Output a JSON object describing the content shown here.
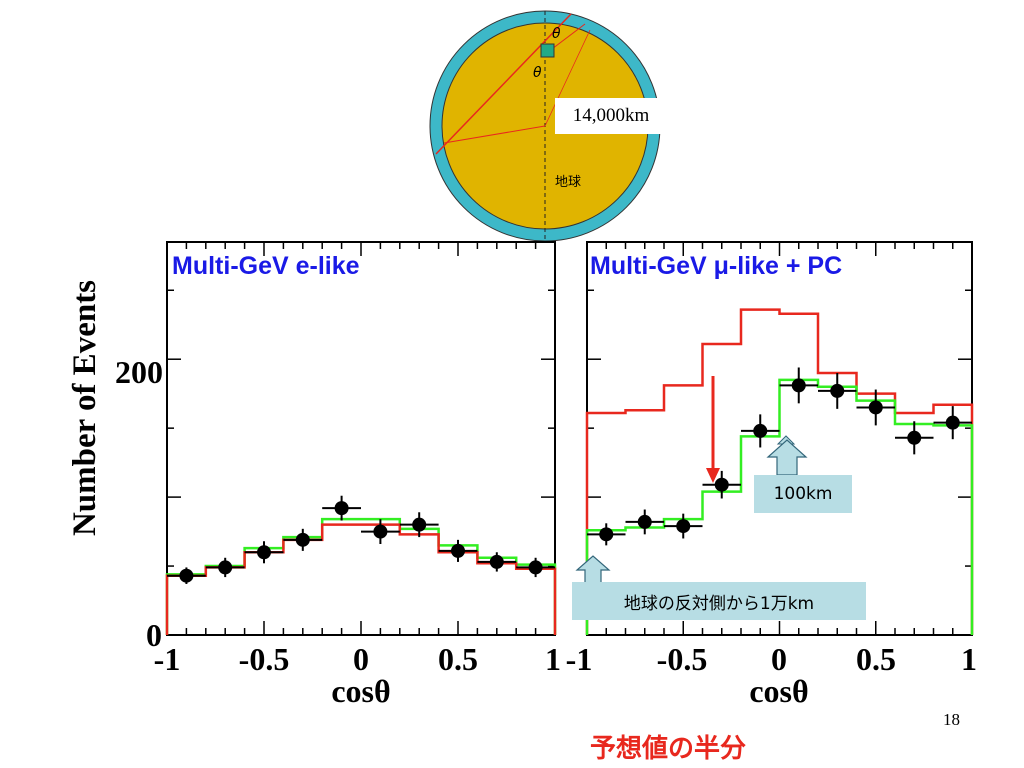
{
  "earth": {
    "theta_top": "θ",
    "theta_inner": "θ",
    "distance_label": "14,000km",
    "earth_label": "地球",
    "colors": {
      "core": "#e0b400",
      "shell": "#3db8c8",
      "line": "#e8281e"
    }
  },
  "chart_data": [
    {
      "type": "histogram",
      "title": "Multi-GeV e-like",
      "xlabel": "cosθ",
      "ylabel": "Number of Events",
      "xlim": [
        -1,
        1
      ],
      "ylim": [
        0,
        285
      ],
      "x_ticks": [
        "-1",
        "-0.5",
        "0",
        "0.5",
        "1"
      ],
      "y_ticks": [
        "0",
        "200"
      ],
      "points": {
        "x": [
          -0.9,
          -0.7,
          -0.5,
          -0.3,
          -0.1,
          0.1,
          0.3,
          0.5,
          0.7,
          0.9
        ],
        "y": [
          43,
          49,
          60,
          69,
          92,
          75,
          80,
          61,
          53,
          49
        ],
        "yerr": [
          6,
          7,
          8,
          8,
          9,
          9,
          9,
          8,
          7,
          7
        ]
      },
      "series": [
        {
          "color": "#33ee22",
          "values": [
            44,
            50,
            63,
            71,
            84,
            84,
            77,
            65,
            56,
            51
          ]
        },
        {
          "color": "#e8281e",
          "values": [
            43,
            49,
            60,
            69,
            80,
            80,
            73,
            60,
            52,
            48
          ]
        }
      ]
    },
    {
      "type": "histogram",
      "title": "Multi-GeV μ-like + PC",
      "xlabel": "cosθ",
      "xlim": [
        -1,
        1
      ],
      "ylim": [
        0,
        285
      ],
      "x_ticks": [
        "-1",
        "-0.5",
        "0",
        "0.5",
        "1"
      ],
      "points": {
        "x": [
          -0.9,
          -0.7,
          -0.5,
          -0.3,
          -0.1,
          0.1,
          0.3,
          0.5,
          0.7,
          0.9
        ],
        "y": [
          73,
          82,
          79,
          109,
          148,
          181,
          177,
          165,
          143,
          154
        ],
        "yerr": [
          8,
          9,
          9,
          10,
          12,
          13,
          13,
          13,
          12,
          12
        ]
      },
      "series": [
        {
          "color": "#e8281e",
          "values": [
            161,
            163,
            181,
            211,
            236,
            233,
            190,
            175,
            161,
            167
          ]
        },
        {
          "color": "#33ee22",
          "values": [
            76,
            78,
            84,
            104,
            144,
            185,
            180,
            170,
            153,
            152
          ]
        }
      ]
    }
  ],
  "callouts": {
    "near": "100km",
    "far": "地球の反対側から1万km"
  },
  "page_number": "18",
  "bottom_note": "予想値の半分"
}
